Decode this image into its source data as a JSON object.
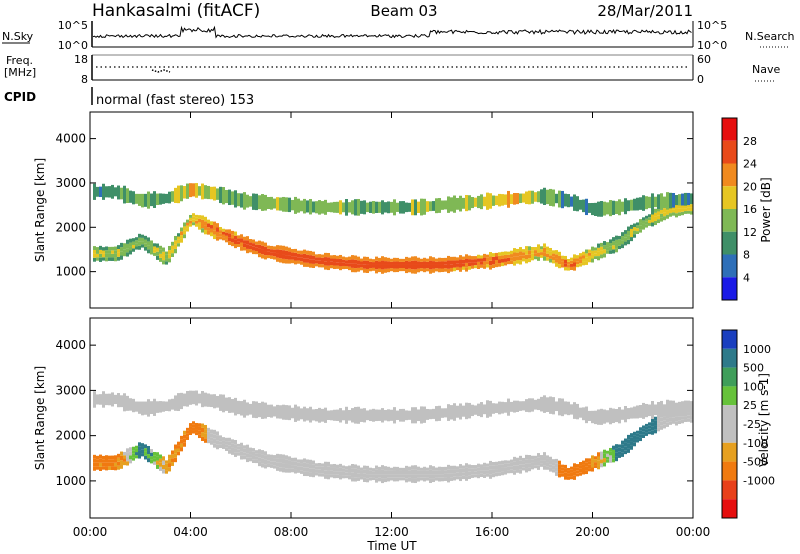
{
  "header": {
    "station": "Hankasalmi (fitACF)",
    "beam": "Beam 03",
    "date": "28/Mar/2011"
  },
  "status_panels": {
    "nsky_label": "N.Sky",
    "nsky_top": "10^5",
    "nsky_bottom": "10^0",
    "nsearch_label": "N.Search",
    "nsearch_top": "10^5",
    "nsearch_bottom": "10^0",
    "freq_label_1": "Freq.",
    "freq_label_2": "[MHz]",
    "freq_top": "18",
    "freq_bottom": "8",
    "nave_label": "Nave",
    "nave_top": "60",
    "nave_bottom": "0",
    "cpid_label": "CPID",
    "cpid_text": "normal (fast stereo) 153"
  },
  "colors": {
    "power": [
      "#1a1ae6",
      "#2e6fb8",
      "#3f8f68",
      "#7fb855",
      "#e6c623",
      "#f08a1f",
      "#e84a1a",
      "#e60e0e"
    ],
    "velocity": [
      "#1a3fbf",
      "#2e7a8a",
      "#3f9e5a",
      "#66c23a",
      "#c0c0c0",
      "#c0c0c0",
      "#e6a020",
      "#f07a10",
      "#e8401a",
      "#e60e0e"
    ],
    "ground_scatter": "#c0c0c0"
  },
  "chart_data": [
    {
      "type": "heatmap",
      "panel": "power",
      "xlabel": "",
      "ylabel": "Slant Range [km]",
      "ylim": [
        180,
        4600
      ],
      "yticks": [
        "1000",
        "2000",
        "3000",
        "4000"
      ],
      "colorbar_label": "Power [dB]",
      "colorbar_ticks": [
        "4",
        "8",
        "12",
        "16",
        "20",
        "24",
        "28"
      ],
      "colorbar_range": [
        0,
        32
      ],
      "x_hours": [
        0,
        1,
        2,
        3,
        4,
        5,
        6,
        7,
        8,
        9,
        10,
        11,
        12,
        13,
        14,
        15,
        16,
        17,
        18,
        19,
        20,
        21,
        22,
        23,
        24
      ],
      "main_echo_center_km": [
        null,
        1400,
        1700,
        1300,
        2200,
        1900,
        1650,
        1450,
        1350,
        1250,
        1200,
        1150,
        1150,
        1150,
        1150,
        1200,
        1250,
        1350,
        1450,
        1150,
        1400,
        1650,
        2100,
        2400,
        2450
      ],
      "main_echo_power_db": [
        null,
        18,
        16,
        18,
        22,
        26,
        28,
        28,
        28,
        28,
        28,
        28,
        28,
        28,
        28,
        27,
        26,
        24,
        22,
        26,
        20,
        16,
        18,
        20,
        20
      ],
      "upper_band_center_km": [
        null,
        2800,
        2600,
        2650,
        2850,
        2750,
        2600,
        2550,
        2500,
        2450,
        2450,
        2450,
        2450,
        2450,
        2500,
        2550,
        2600,
        2650,
        2700,
        2600,
        2400,
        2450,
        2550,
        2600,
        2650
      ],
      "upper_band_power_db": [
        null,
        10,
        12,
        12,
        20,
        14,
        12,
        14,
        12,
        12,
        14,
        12,
        12,
        14,
        14,
        16,
        18,
        18,
        12,
        10,
        10,
        12,
        12,
        10,
        10
      ]
    },
    {
      "type": "heatmap",
      "panel": "velocity",
      "xlabel": "Time UT",
      "ylabel": "Slant Range [km]",
      "ylim": [
        180,
        4600
      ],
      "yticks": [
        "1000",
        "2000",
        "3000",
        "4000"
      ],
      "xticks": [
        "00:00",
        "04:00",
        "08:00",
        "12:00",
        "16:00",
        "20:00",
        "00:00"
      ],
      "colorbar_label": "Velocity [m s-1]",
      "colorbar_ticks": [
        "1000",
        "500",
        "100",
        "25",
        "-25",
        "-100",
        "-500",
        "-1000"
      ],
      "x_hours": [
        0,
        1,
        2,
        3,
        4,
        5,
        6,
        7,
        8,
        9,
        10,
        11,
        12,
        13,
        14,
        15,
        16,
        17,
        18,
        19,
        20,
        21,
        22,
        23,
        24
      ],
      "ionospheric_velocity_ms": [
        null,
        -150,
        150,
        -50,
        -200,
        0,
        0,
        0,
        0,
        0,
        0,
        0,
        0,
        0,
        0,
        0,
        0,
        -100,
        0,
        -300,
        -120,
        150,
        300,
        0,
        0
      ]
    }
  ]
}
